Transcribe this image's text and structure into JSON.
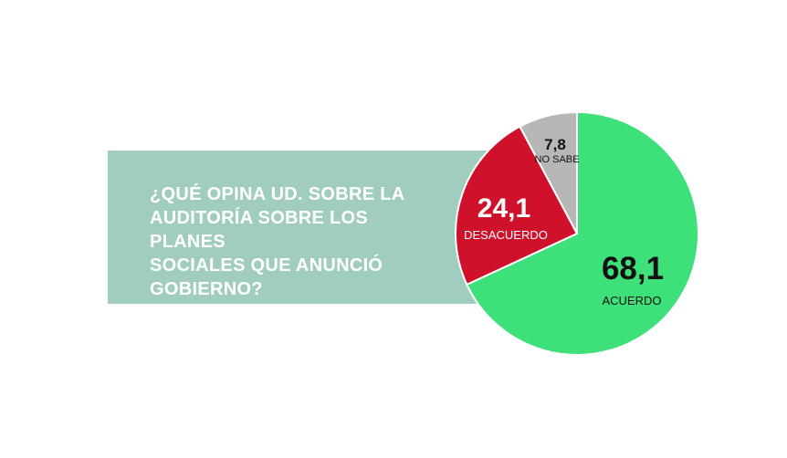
{
  "question": "¿QUÉ OPINA UD. SOBRE LA\nAUDITORÍA SOBRE LOS PLANES\nSOCIALES QUE ANUNCIÓ\nGOBIERNO?",
  "colors": {
    "panel": "#a1cdbf",
    "acuerdo": "#3ee07a",
    "desacuerdo": "#d0112b",
    "no_sabe": "#b7b7b7"
  },
  "chart_data": {
    "type": "pie",
    "title": "¿QUÉ OPINA UD. SOBRE LA AUDITORÍA SOBRE LOS PLANES SOCIALES QUE ANUNCIÓ GOBIERNO?",
    "slices": [
      {
        "label": "ACUERDO",
        "value": 68.1,
        "value_label": "68,1",
        "color": "#3ee07a"
      },
      {
        "label": "DESACUERDO",
        "value": 24.1,
        "value_label": "24,1",
        "color": "#d0112b"
      },
      {
        "label": "NO SABE",
        "value": 7.8,
        "value_label": "7,8",
        "color": "#b7b7b7"
      }
    ],
    "start": "top",
    "direction": "clockwise"
  }
}
